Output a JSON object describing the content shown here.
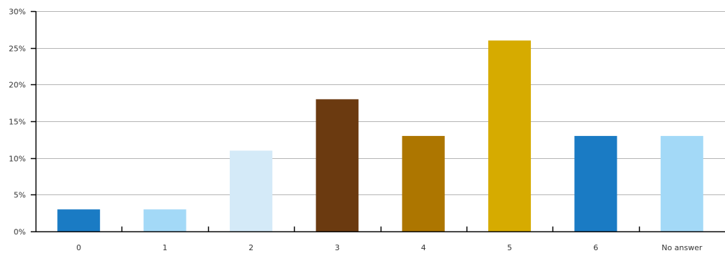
{
  "chart_data": {
    "type": "bar",
    "title": "",
    "xlabel": "",
    "ylabel": "",
    "categories": [
      "0",
      "1",
      "2",
      "3",
      "4",
      "5",
      "6",
      "No answer"
    ],
    "values": [
      3,
      3,
      11,
      18,
      13,
      26,
      13,
      13
    ],
    "bar_colors": [
      "#1a7bc4",
      "#a3d9f7",
      "#d4eaf8",
      "#6b3a10",
      "#ad7600",
      "#d6ab00",
      "#1a7bc4",
      "#a3d9f7"
    ],
    "ylim": [
      0,
      30
    ],
    "yticks": [
      0,
      5,
      10,
      15,
      20,
      25,
      30
    ],
    "ytick_labels": [
      "0%",
      "5%",
      "10%",
      "15%",
      "20%",
      "25%",
      "30%"
    ],
    "grid": "horizontal",
    "legend": "none"
  }
}
